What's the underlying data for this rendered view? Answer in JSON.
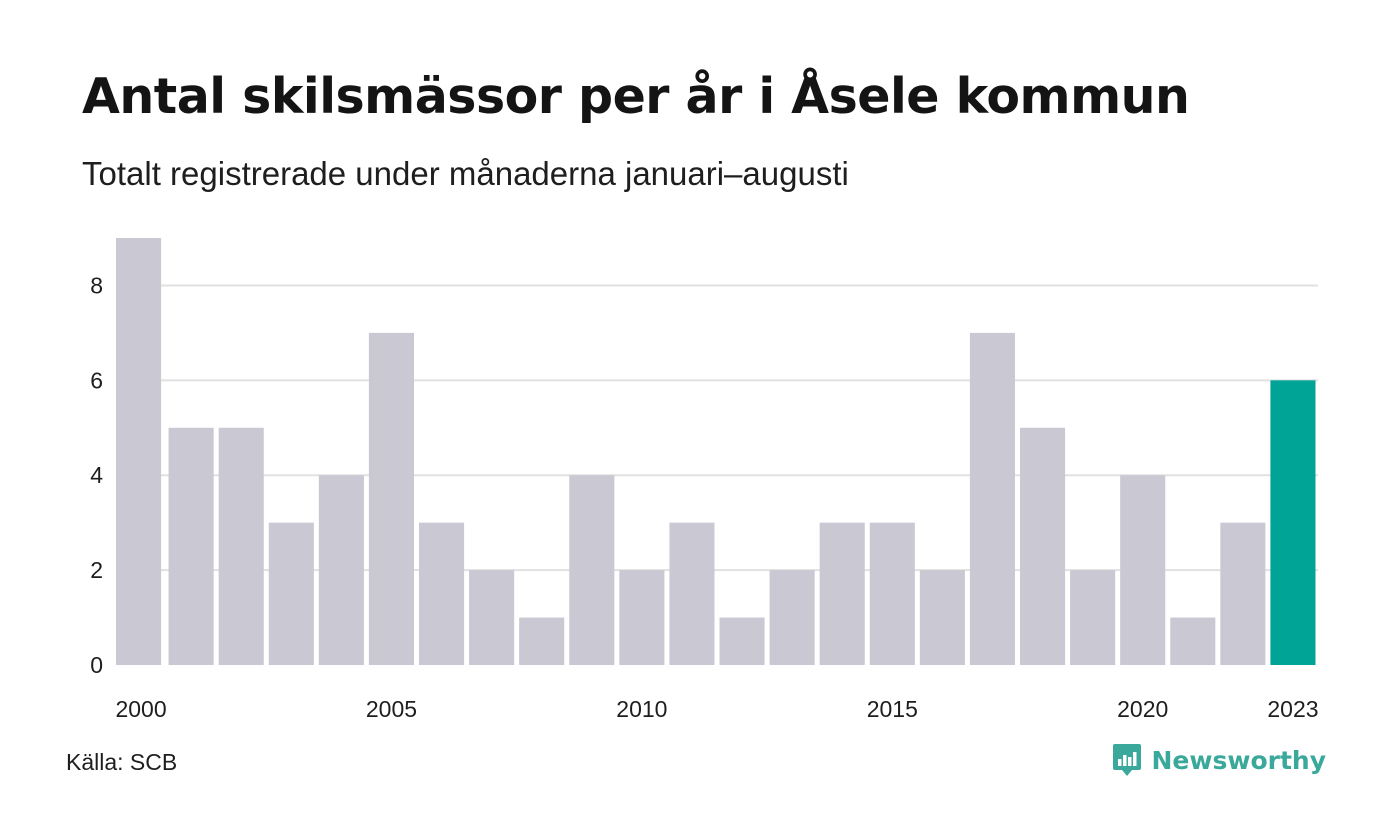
{
  "title": "Antal skilsmässor per år i Åsele kommun",
  "subtitle": "Totalt registrerade under månaderna januari–augusti",
  "source": "Källa: SCB",
  "brand": {
    "name": "Newsworthy",
    "icon": "newsworthy-logo-icon"
  },
  "colors": {
    "bar": "#c9c8d3",
    "highlight": "#00a497",
    "grid": "#e1e1e1",
    "text": "#1e1e1e"
  },
  "chart_data": {
    "type": "bar",
    "categories": [
      "2000",
      "2001",
      "2002",
      "2003",
      "2004",
      "2005",
      "2006",
      "2007",
      "2008",
      "2009",
      "2010",
      "2011",
      "2012",
      "2013",
      "2014",
      "2015",
      "2016",
      "2017",
      "2018",
      "2019",
      "2020",
      "2021",
      "2022",
      "2023"
    ],
    "values": [
      9,
      5,
      5,
      3,
      4,
      7,
      3,
      2,
      1,
      4,
      2,
      3,
      1,
      2,
      3,
      3,
      2,
      7,
      5,
      2,
      4,
      1,
      3,
      6
    ],
    "highlight_category": "2023",
    "x_tick_labels": [
      "2000",
      "2005",
      "2010",
      "2015",
      "2020",
      "2023"
    ],
    "y_ticks": [
      0,
      2,
      4,
      6,
      8
    ],
    "ylim": [
      0,
      9
    ],
    "grid": true,
    "legend": false
  }
}
